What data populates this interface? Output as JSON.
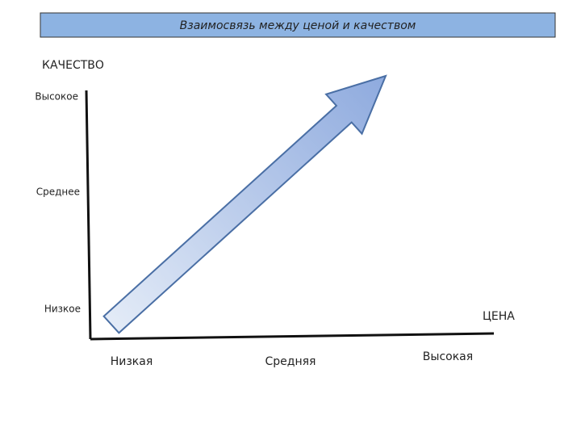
{
  "header": {
    "title": "Взаимосвязь между ценой и качеством"
  },
  "y_axis": {
    "label": "КАЧЕСТВО",
    "levels": [
      "Высокое",
      "Среднее",
      "Низкое"
    ]
  },
  "x_axis": {
    "label": "ЦЕНА",
    "levels": [
      "Низкая",
      "Средняя",
      "Высокая"
    ]
  }
}
